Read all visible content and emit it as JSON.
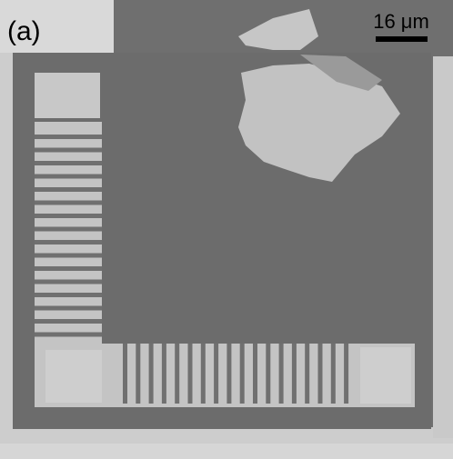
{
  "panel_label": "(a)",
  "scale_bar": {
    "label": "16 μm"
  }
}
